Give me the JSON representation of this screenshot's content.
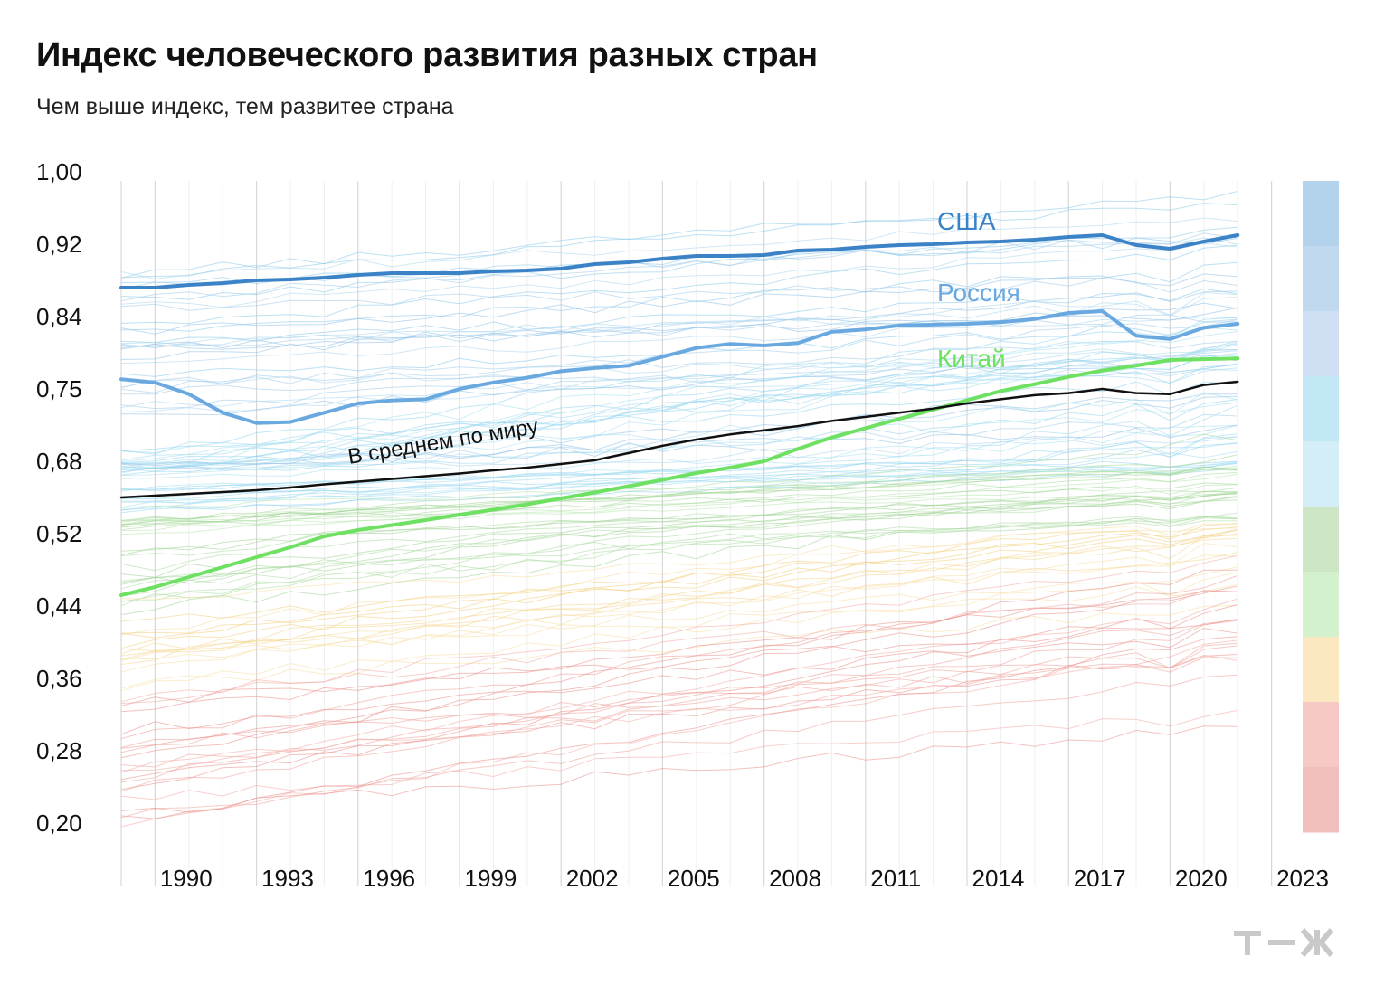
{
  "title": "Индекс человеческого развития разных стран",
  "subtitle": "Чем выше индекс, тем развитее страна",
  "chart_data": {
    "type": "line",
    "x_ticks": [
      "1990",
      "1993",
      "1996",
      "1999",
      "2002",
      "2005",
      "2008",
      "2011",
      "2014",
      "2017",
      "2020",
      "2023"
    ],
    "y_ticks": [
      "0,20",
      "0,28",
      "0,36",
      "0,44",
      "0,52",
      "0,68",
      "0,75",
      "0,84",
      "0,92",
      "1,00"
    ],
    "x_range": [
      1989,
      2023
    ],
    "legend_colors": [
      "#b3d3ec",
      "#c0d9ee",
      "#d0e0f4",
      "#c2e8f6",
      "#d4eef7",
      "#cde6c6",
      "#d3f1cc",
      "#fbe8c0",
      "#f6c9c4",
      "#f0bfbc"
    ],
    "series": [
      {
        "name": "США",
        "color": "#3b82c6",
        "x": [
          1989,
          1990,
          1991,
          1992,
          1993,
          1994,
          1995,
          1996,
          1997,
          1998,
          1999,
          2000,
          2001,
          2002,
          2003,
          2004,
          2005,
          2006,
          2007,
          2008,
          2009,
          2010,
          2011,
          2012,
          2013,
          2014,
          2015,
          2016,
          2017,
          2018,
          2019,
          2020,
          2021,
          2022
        ],
        "y": [
          0.872,
          0.872,
          0.875,
          0.877,
          0.88,
          0.881,
          0.883,
          0.886,
          0.888,
          0.888,
          0.888,
          0.89,
          0.891,
          0.893,
          0.898,
          0.9,
          0.904,
          0.907,
          0.907,
          0.908,
          0.913,
          0.914,
          0.917,
          0.919,
          0.92,
          0.922,
          0.923,
          0.925,
          0.928,
          0.93,
          0.919,
          0.915,
          0.923,
          0.93
        ]
      },
      {
        "name": "Россия",
        "color": "#6aa9e0",
        "x": [
          1989,
          1990,
          1991,
          1992,
          1993,
          1994,
          1995,
          1996,
          1997,
          1998,
          1999,
          2000,
          2001,
          2002,
          2003,
          2004,
          2005,
          2006,
          2007,
          2008,
          2009,
          2010,
          2011,
          2012,
          2013,
          2014,
          2015,
          2016,
          2017,
          2018,
          2019,
          2020,
          2021,
          2022
        ],
        "y": [
          0.762,
          0.758,
          0.745,
          0.727,
          0.717,
          0.718,
          0.727,
          0.736,
          0.739,
          0.74,
          0.75,
          0.758,
          0.764,
          0.772,
          0.776,
          0.779,
          0.79,
          0.801,
          0.806,
          0.804,
          0.807,
          0.821,
          0.824,
          0.829,
          0.83,
          0.831,
          0.833,
          0.837,
          0.844,
          0.846,
          0.816,
          0.812,
          0.826,
          0.831
        ]
      },
      {
        "name": "Китай",
        "color": "#6ee062",
        "x": [
          1989,
          1990,
          1991,
          1992,
          1993,
          1994,
          1995,
          1996,
          1997,
          1998,
          1999,
          2000,
          2001,
          2002,
          2003,
          2004,
          2005,
          2006,
          2007,
          2008,
          2009,
          2010,
          2011,
          2012,
          2013,
          2014,
          2015,
          2016,
          2017,
          2018,
          2019,
          2020,
          2021,
          2022
        ],
        "y": [
          0.452,
          0.461,
          0.472,
          0.483,
          0.494,
          0.505,
          0.517,
          0.528,
          0.539,
          0.55,
          0.562,
          0.573,
          0.585,
          0.598,
          0.611,
          0.625,
          0.639,
          0.654,
          0.666,
          0.68,
          0.692,
          0.703,
          0.712,
          0.721,
          0.73,
          0.739,
          0.748,
          0.756,
          0.765,
          0.773,
          0.779,
          0.786,
          0.787,
          0.788
        ]
      },
      {
        "name": "В среднем по миру",
        "color": "#111111",
        "x": [
          1989,
          1990,
          1991,
          1992,
          1993,
          1994,
          1995,
          1996,
          1997,
          1998,
          1999,
          2000,
          2001,
          2002,
          2003,
          2004,
          2005,
          2006,
          2007,
          2008,
          2009,
          2010,
          2011,
          2012,
          2013,
          2014,
          2015,
          2016,
          2017,
          2018,
          2019,
          2020,
          2021,
          2022
        ],
        "y": [
          0.6,
          0.604,
          0.608,
          0.612,
          0.616,
          0.622,
          0.629,
          0.635,
          0.641,
          0.647,
          0.653,
          0.66,
          0.666,
          0.674,
          0.681,
          0.688,
          0.695,
          0.701,
          0.706,
          0.71,
          0.714,
          0.719,
          0.723,
          0.727,
          0.731,
          0.736,
          0.74,
          0.744,
          0.746,
          0.75,
          0.746,
          0.745,
          0.755,
          0.759
        ]
      }
    ]
  }
}
